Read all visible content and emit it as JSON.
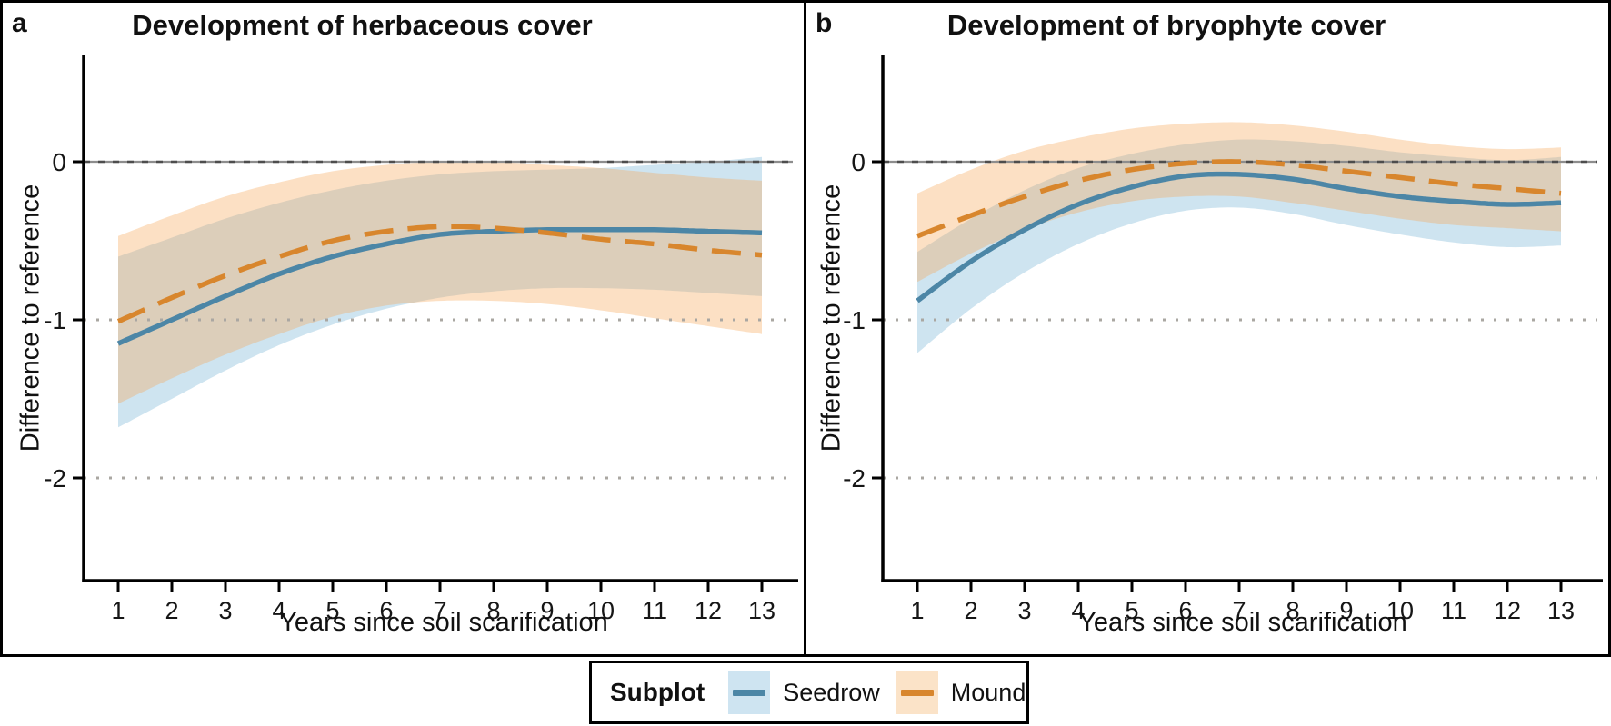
{
  "figure": {
    "background": "#ffffff",
    "border_color": "#000000"
  },
  "legend": {
    "title": "Subplot",
    "items": [
      {
        "label": "Seedrow",
        "line_color": "#4C86A6",
        "swatch_color": "#CEE4F1"
      },
      {
        "label": "Mound",
        "line_color": "#D8862D",
        "swatch_color": "#FBE3C8"
      }
    ]
  },
  "chart_data": [
    {
      "type": "line",
      "panel_label": "a",
      "title": "Development of herbaceous cover",
      "xlabel": "Years since soil scarification",
      "ylabel": "Difference to reference",
      "x": [
        1,
        2,
        3,
        4,
        5,
        6,
        7,
        8,
        9,
        10,
        11,
        12,
        13
      ],
      "xlim": [
        0.4,
        13.6
      ],
      "ylim": [
        -2.65,
        0.65
      ],
      "yticks": [
        0,
        -1,
        -2
      ],
      "grid_values": [
        0,
        -1,
        -2
      ],
      "grid_style": "dotted",
      "reference_line": 0,
      "legend_position": "bottom",
      "series": [
        {
          "name": "Seedrow",
          "line_style": "solid",
          "color": "#4C86A6",
          "band_fill": "rgba(166,206,227,0.55)",
          "mean": [
            -1.15,
            -1.0,
            -0.85,
            -0.71,
            -0.6,
            -0.52,
            -0.46,
            -0.44,
            -0.43,
            -0.43,
            -0.43,
            -0.44,
            -0.45
          ],
          "upper": [
            -0.6,
            -0.48,
            -0.36,
            -0.26,
            -0.18,
            -0.12,
            -0.08,
            -0.06,
            -0.05,
            -0.04,
            -0.02,
            0.0,
            0.03
          ],
          "lower": [
            -1.68,
            -1.5,
            -1.32,
            -1.16,
            -1.03,
            -0.93,
            -0.86,
            -0.82,
            -0.8,
            -0.8,
            -0.81,
            -0.83,
            -0.85
          ]
        },
        {
          "name": "Mound",
          "line_style": "dashed",
          "color": "#D8862D",
          "band_fill": "rgba(245,166,85,0.35)",
          "mean": [
            -1.01,
            -0.86,
            -0.72,
            -0.6,
            -0.5,
            -0.44,
            -0.41,
            -0.42,
            -0.45,
            -0.49,
            -0.52,
            -0.56,
            -0.59
          ],
          "upper": [
            -0.47,
            -0.34,
            -0.22,
            -0.13,
            -0.06,
            -0.02,
            0.0,
            0.0,
            -0.02,
            -0.04,
            -0.07,
            -0.1,
            -0.12
          ],
          "lower": [
            -1.53,
            -1.37,
            -1.22,
            -1.09,
            -0.98,
            -0.91,
            -0.88,
            -0.88,
            -0.9,
            -0.94,
            -0.99,
            -1.04,
            -1.09
          ]
        }
      ]
    },
    {
      "type": "line",
      "panel_label": "b",
      "title": "Development of bryophyte cover",
      "xlabel": "Years since soil scarification",
      "ylabel": "Difference to reference",
      "x": [
        1,
        2,
        3,
        4,
        5,
        6,
        7,
        8,
        9,
        10,
        11,
        12,
        13
      ],
      "xlim": [
        0.4,
        13.6
      ],
      "ylim": [
        -2.65,
        0.65
      ],
      "yticks": [
        0,
        -1,
        -2
      ],
      "grid_values": [
        0,
        -1,
        -2
      ],
      "grid_style": "dotted",
      "reference_line": 0,
      "legend_position": "bottom",
      "series": [
        {
          "name": "Seedrow",
          "line_style": "solid",
          "color": "#4C86A6",
          "band_fill": "rgba(166,206,227,0.55)",
          "mean": [
            -0.88,
            -0.63,
            -0.43,
            -0.27,
            -0.16,
            -0.09,
            -0.08,
            -0.11,
            -0.17,
            -0.22,
            -0.25,
            -0.27,
            -0.26
          ],
          "upper": [
            -0.57,
            -0.36,
            -0.18,
            -0.04,
            0.05,
            0.11,
            0.14,
            0.13,
            0.1,
            0.06,
            0.03,
            0.01,
            0.03
          ],
          "lower": [
            -1.21,
            -0.93,
            -0.7,
            -0.52,
            -0.39,
            -0.31,
            -0.29,
            -0.33,
            -0.4,
            -0.46,
            -0.51,
            -0.54,
            -0.53
          ]
        },
        {
          "name": "Mound",
          "line_style": "dashed",
          "color": "#D8862D",
          "band_fill": "rgba(245,166,85,0.35)",
          "mean": [
            -0.47,
            -0.34,
            -0.22,
            -0.12,
            -0.05,
            -0.01,
            0.0,
            -0.02,
            -0.06,
            -0.1,
            -0.14,
            -0.17,
            -0.2
          ],
          "upper": [
            -0.2,
            -0.05,
            0.07,
            0.15,
            0.21,
            0.24,
            0.25,
            0.23,
            0.19,
            0.14,
            0.1,
            0.08,
            0.09
          ],
          "lower": [
            -0.76,
            -0.58,
            -0.43,
            -0.32,
            -0.25,
            -0.22,
            -0.22,
            -0.26,
            -0.31,
            -0.36,
            -0.4,
            -0.42,
            -0.44
          ]
        }
      ]
    }
  ]
}
